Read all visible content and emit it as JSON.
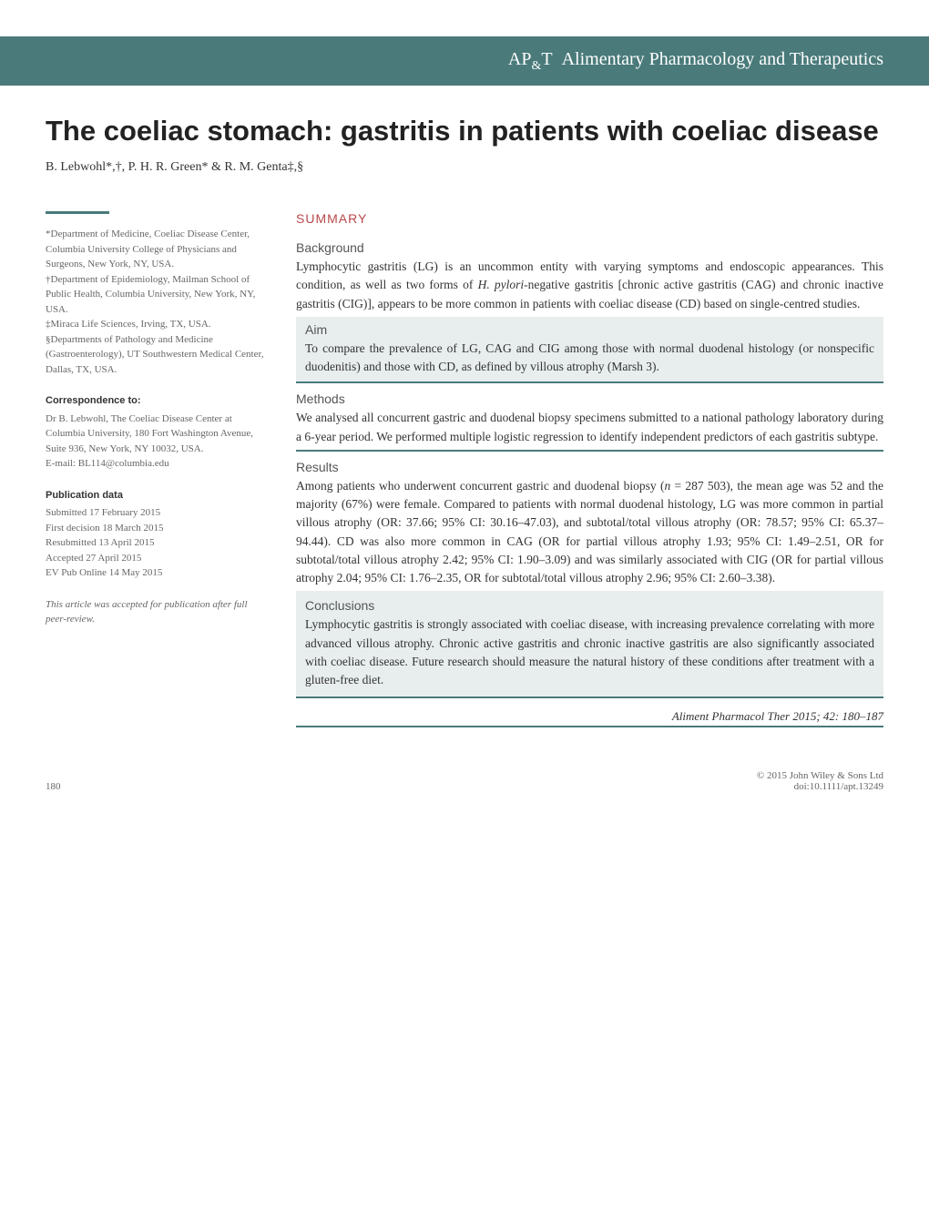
{
  "journal_header": "AP&T  Alimentary Pharmacology and Therapeutics",
  "article_title": "The coeliac stomach: gastritis in patients with coeliac disease",
  "authors": "B. Lebwohl*,†, P. H. R. Green* & R. M. Genta‡,§",
  "affiliations": {
    "a1": "*Department of Medicine, Coeliac Disease Center, Columbia University College of Physicians and Surgeons, New York, NY, USA.",
    "a2": "†Department of Epidemiology, Mailman School of Public Health, Columbia University, New York, NY, USA.",
    "a3": "‡Miraca Life Sciences, Irving, TX, USA.",
    "a4": "§Departments of Pathology and Medicine (Gastroenterology), UT Southwestern Medical Center, Dallas, TX, USA."
  },
  "correspondence": {
    "head": "Correspondence to:",
    "body": "Dr B. Lebwohl, The Coeliac Disease Center at Columbia University, 180 Fort Washington Avenue, Suite 936, New York, NY 10032, USA.",
    "email": "E-mail: BL114@columbia.edu"
  },
  "pubdata": {
    "head": "Publication data",
    "l1": "Submitted 17 February 2015",
    "l2": "First decision 18 March 2015",
    "l3": "Resubmitted 13 April 2015",
    "l4": "Accepted 27 April 2015",
    "l5": "EV Pub Online 14 May 2015"
  },
  "peer_review": "This article was accepted for publication after full peer-review.",
  "summary": {
    "head": "SUMMARY",
    "background": {
      "head": "Background",
      "body": "Lymphocytic gastritis (LG) is an uncommon entity with varying symptoms and endoscopic appearances. This condition, as well as two forms of H. pylori-negative gastritis [chronic active gastritis (CAG) and chronic inactive gastritis (CIG)], appears to be more common in patients with coeliac disease (CD) based on single-centred studies."
    },
    "aim": {
      "head": "Aim",
      "body": "To compare the prevalence of LG, CAG and CIG among those with normal duodenal histology (or nonspecific duodenitis) and those with CD, as defined by villous atrophy (Marsh 3)."
    },
    "methods": {
      "head": "Methods",
      "body": "We analysed all concurrent gastric and duodenal biopsy specimens submitted to a national pathology laboratory during a 6-year period. We performed multiple logistic regression to identify independent predictors of each gastritis subtype."
    },
    "results": {
      "head": "Results",
      "body": "Among patients who underwent concurrent gastric and duodenal biopsy (n = 287 503), the mean age was 52 and the majority (67%) were female. Compared to patients with normal duodenal histology, LG was more common in partial villous atrophy (OR: 37.66; 95% CI: 30.16–47.03), and subtotal/total villous atrophy (OR: 78.57; 95% CI: 65.37–94.44). CD was also more common in CAG (OR for partial villous atrophy 1.93; 95% CI: 1.49–2.51, OR for subtotal/total villous atrophy 2.42; 95% CI: 1.90–3.09) and was similarly associated with CIG (OR for partial villous atrophy 2.04; 95% CI: 1.76–2.35, OR for subtotal/total villous atrophy 2.96; 95% CI: 2.60–3.38)."
    },
    "conclusions": {
      "head": "Conclusions",
      "body": "Lymphocytic gastritis is strongly associated with coeliac disease, with increasing prevalence correlating with more advanced villous atrophy. Chronic active gastritis and chronic inactive gastritis are also significantly associated with coeliac disease. Future research should measure the natural history of these conditions after treatment with a gluten-free diet."
    }
  },
  "citation": "Aliment Pharmacol Ther 2015; 42: 180–187",
  "footer": {
    "page": "180",
    "copyright": "© 2015 John Wiley & Sons Ltd",
    "doi": "doi:10.1111/apt.13249"
  },
  "colors": {
    "teal": "#4a7a7a",
    "red": "#b8484a",
    "grey_bg": "#e8edee"
  }
}
